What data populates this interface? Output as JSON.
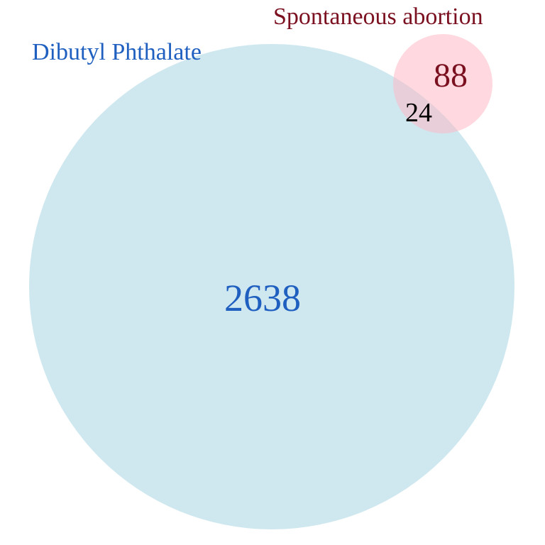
{
  "venn": {
    "sets": [
      {
        "id": "dibutyl",
        "label": "Dibutyl Phthalate",
        "fill_color": "#add8e6",
        "label_color": "#1f5fbf"
      },
      {
        "id": "abortion",
        "label": "Spontaneous abortion",
        "fill_color": "#ffb6c1",
        "label_color": "#7a1020"
      }
    ],
    "regions": {
      "dibutyl_only": "2638",
      "abortion_only": "88",
      "intersection": "24"
    },
    "colors": {
      "intersection_text": "#000000",
      "background": "#ffffff"
    }
  }
}
